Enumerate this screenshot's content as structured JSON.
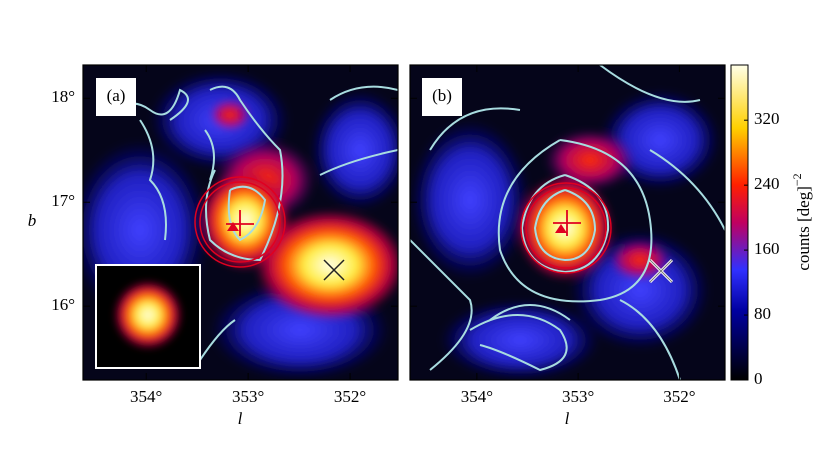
{
  "chart_data": [
    {
      "type": "heatmap",
      "panel_label": "(a)",
      "xlabel": "l",
      "ylabel": "b",
      "xlim": [
        354.62,
        351.53
      ],
      "ylim": [
        15.29,
        18.32
      ],
      "xticks": [
        {
          "value": 354,
          "label": "354°"
        },
        {
          "value": 353,
          "label": "353°"
        },
        {
          "value": 352,
          "label": "352°"
        }
      ],
      "yticks": [
        {
          "value": 16,
          "label": "16°"
        },
        {
          "value": 17,
          "label": "17°"
        },
        {
          "value": 18,
          "label": "18°"
        }
      ]
    },
    {
      "type": "heatmap",
      "panel_label": "(b)",
      "xlabel": "l",
      "xlim": [
        354.66,
        351.55
      ],
      "ylim": [
        15.29,
        18.32
      ],
      "xticks": [
        {
          "value": 354,
          "label": "354°"
        },
        {
          "value": 353,
          "label": "353°"
        },
        {
          "value": 352,
          "label": "352°"
        }
      ],
      "yticks": [
        16,
        17,
        18
      ]
    },
    {
      "type": "colorbar",
      "label": "counts [deg]",
      "label_superscript": "−2",
      "ylim": [
        0,
        388
      ],
      "yticks": [
        0,
        80,
        160,
        240,
        320
      ]
    }
  ]
}
